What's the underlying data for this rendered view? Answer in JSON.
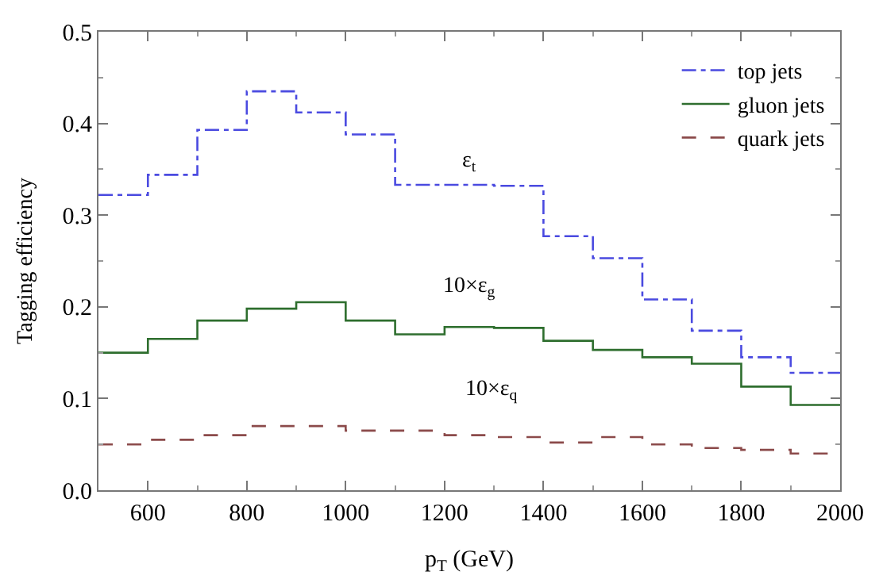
{
  "chart_data": {
    "type": "histogram",
    "xlabel": "p$_{T}$ (GeV)",
    "ylabel": "Tagging efficiency",
    "bins": [
      500,
      600,
      700,
      800,
      900,
      1000,
      1100,
      1200,
      1300,
      1400,
      1500,
      1600,
      1700,
      1800,
      1900,
      2000
    ],
    "series": [
      {
        "name": "top jets",
        "color": "#4a4ae0",
        "line_style": "dashdot",
        "values": [
          0.322,
          0.344,
          0.393,
          0.435,
          0.412,
          0.388,
          0.333,
          0.333,
          0.332,
          0.277,
          0.253,
          0.208,
          0.174,
          0.145,
          0.128
        ]
      },
      {
        "name": "gluon jets",
        "color": "#2e6e2e",
        "line_style": "solid",
        "values": [
          0.15,
          0.165,
          0.185,
          0.198,
          0.205,
          0.185,
          0.17,
          0.178,
          0.177,
          0.163,
          0.153,
          0.145,
          0.138,
          0.113,
          0.093
        ]
      },
      {
        "name": "quark jets",
        "color": "#8b4a4a",
        "line_style": "dashed",
        "values": [
          0.05,
          0.055,
          0.06,
          0.07,
          0.07,
          0.065,
          0.065,
          0.06,
          0.058,
          0.052,
          0.058,
          0.05,
          0.046,
          0.044,
          0.04
        ]
      }
    ],
    "annotations": [
      "ε$_{t}$",
      "10×ε$_{g}$",
      "10×ε$_{q}$"
    ],
    "xlim": [
      500,
      2000
    ],
    "xticks": [
      600,
      800,
      1000,
      1200,
      1400,
      1600,
      1800,
      2000
    ],
    "ylim": [
      0,
      0.5
    ],
    "yticks": [
      {
        "value": 0,
        "label": "0.0"
      },
      {
        "value": 0.1,
        "label": "0.1"
      },
      {
        "value": 0.2,
        "label": "0.2"
      },
      {
        "value": 0.3,
        "label": "0.3"
      },
      {
        "value": 0.4,
        "label": "0.4"
      },
      {
        "value": 0.5,
        "label": "0.5"
      }
    ],
    "legend": "top right"
  }
}
